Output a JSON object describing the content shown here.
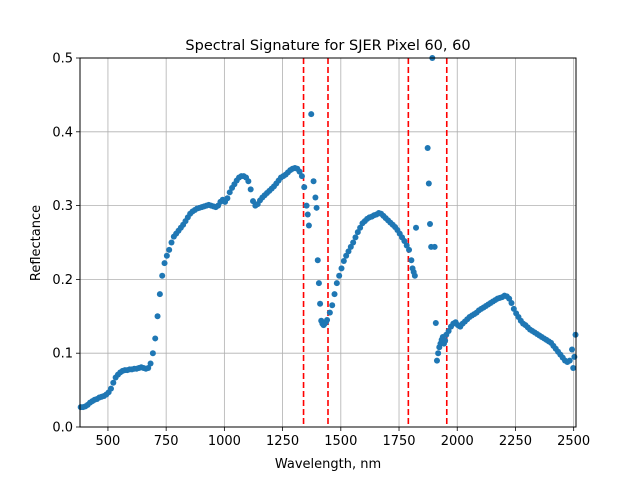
{
  "chart_data": {
    "type": "scatter",
    "title": "Spectral Signature for SJER Pixel 60, 60",
    "xlabel": "Wavelength, nm",
    "ylabel": "Reflectance",
    "xlim": [
      380,
      2510
    ],
    "ylim": [
      0,
      0.5
    ],
    "xticks": [
      500,
      750,
      1000,
      1250,
      1500,
      1750,
      2000,
      2250,
      2500
    ],
    "yticks": [
      0.0,
      0.1,
      0.2,
      0.3,
      0.4,
      0.5
    ],
    "xtick_labels": [
      "500",
      "750",
      "1000",
      "1250",
      "1500",
      "1750",
      "2000",
      "2250",
      "2500"
    ],
    "ytick_labels": [
      "0.0",
      "0.1",
      "0.2",
      "0.3",
      "0.4",
      "0.5"
    ],
    "grid": true,
    "point_color": "#1f77b4",
    "vline_color": "#ff0000",
    "vlines": [
      1340,
      1445,
      1790,
      1955
    ],
    "points": [
      [
        383,
        0.027
      ],
      [
        393,
        0.027
      ],
      [
        403,
        0.028
      ],
      [
        413,
        0.03
      ],
      [
        423,
        0.033
      ],
      [
        433,
        0.035
      ],
      [
        443,
        0.037
      ],
      [
        453,
        0.038
      ],
      [
        463,
        0.04
      ],
      [
        473,
        0.041
      ],
      [
        483,
        0.042
      ],
      [
        493,
        0.044
      ],
      [
        503,
        0.047
      ],
      [
        513,
        0.052
      ],
      [
        523,
        0.06
      ],
      [
        533,
        0.067
      ],
      [
        543,
        0.071
      ],
      [
        553,
        0.074
      ],
      [
        563,
        0.076
      ],
      [
        573,
        0.077
      ],
      [
        583,
        0.077
      ],
      [
        593,
        0.078
      ],
      [
        603,
        0.078
      ],
      [
        613,
        0.079
      ],
      [
        623,
        0.079
      ],
      [
        633,
        0.08
      ],
      [
        643,
        0.081
      ],
      [
        653,
        0.08
      ],
      [
        663,
        0.079
      ],
      [
        673,
        0.08
      ],
      [
        683,
        0.086
      ],
      [
        693,
        0.1
      ],
      [
        703,
        0.12
      ],
      [
        713,
        0.15
      ],
      [
        723,
        0.18
      ],
      [
        733,
        0.205
      ],
      [
        743,
        0.222
      ],
      [
        753,
        0.232
      ],
      [
        763,
        0.24
      ],
      [
        773,
        0.25
      ],
      [
        783,
        0.258
      ],
      [
        793,
        0.262
      ],
      [
        803,
        0.266
      ],
      [
        813,
        0.27
      ],
      [
        823,
        0.274
      ],
      [
        833,
        0.279
      ],
      [
        843,
        0.284
      ],
      [
        853,
        0.289
      ],
      [
        863,
        0.292
      ],
      [
        873,
        0.294
      ],
      [
        883,
        0.296
      ],
      [
        893,
        0.297
      ],
      [
        903,
        0.298
      ],
      [
        913,
        0.299
      ],
      [
        923,
        0.3
      ],
      [
        933,
        0.301
      ],
      [
        943,
        0.3
      ],
      [
        953,
        0.299
      ],
      [
        963,
        0.298
      ],
      [
        973,
        0.3
      ],
      [
        983,
        0.305
      ],
      [
        993,
        0.308
      ],
      [
        1003,
        0.305
      ],
      [
        1013,
        0.31
      ],
      [
        1023,
        0.318
      ],
      [
        1033,
        0.324
      ],
      [
        1043,
        0.329
      ],
      [
        1053,
        0.334
      ],
      [
        1063,
        0.338
      ],
      [
        1073,
        0.34
      ],
      [
        1083,
        0.34
      ],
      [
        1093,
        0.338
      ],
      [
        1103,
        0.333
      ],
      [
        1113,
        0.322
      ],
      [
        1123,
        0.306
      ],
      [
        1133,
        0.3
      ],
      [
        1143,
        0.302
      ],
      [
        1153,
        0.307
      ],
      [
        1163,
        0.311
      ],
      [
        1173,
        0.314
      ],
      [
        1183,
        0.317
      ],
      [
        1193,
        0.32
      ],
      [
        1203,
        0.323
      ],
      [
        1213,
        0.326
      ],
      [
        1223,
        0.33
      ],
      [
        1233,
        0.334
      ],
      [
        1243,
        0.338
      ],
      [
        1253,
        0.34
      ],
      [
        1263,
        0.342
      ],
      [
        1273,
        0.345
      ],
      [
        1283,
        0.348
      ],
      [
        1293,
        0.35
      ],
      [
        1303,
        0.351
      ],
      [
        1313,
        0.35
      ],
      [
        1323,
        0.346
      ],
      [
        1333,
        0.34
      ],
      [
        1343,
        0.325
      ],
      [
        1353,
        0.3
      ],
      [
        1358,
        0.288
      ],
      [
        1363,
        0.273
      ],
      [
        1373,
        0.424
      ],
      [
        1383,
        0.333
      ],
      [
        1391,
        0.311
      ],
      [
        1396,
        0.297
      ],
      [
        1401,
        0.226
      ],
      [
        1406,
        0.195
      ],
      [
        1411,
        0.167
      ],
      [
        1416,
        0.144
      ],
      [
        1421,
        0.14
      ],
      [
        1426,
        0.138
      ],
      [
        1431,
        0.14
      ],
      [
        1436,
        0.142
      ],
      [
        1441,
        0.145
      ],
      [
        1453,
        0.155
      ],
      [
        1463,
        0.165
      ],
      [
        1473,
        0.18
      ],
      [
        1483,
        0.195
      ],
      [
        1493,
        0.205
      ],
      [
        1503,
        0.215
      ],
      [
        1513,
        0.225
      ],
      [
        1523,
        0.232
      ],
      [
        1533,
        0.238
      ],
      [
        1543,
        0.244
      ],
      [
        1553,
        0.25
      ],
      [
        1563,
        0.257
      ],
      [
        1573,
        0.264
      ],
      [
        1583,
        0.27
      ],
      [
        1593,
        0.276
      ],
      [
        1603,
        0.279
      ],
      [
        1613,
        0.282
      ],
      [
        1623,
        0.284
      ],
      [
        1633,
        0.285
      ],
      [
        1643,
        0.287
      ],
      [
        1653,
        0.288
      ],
      [
        1663,
        0.29
      ],
      [
        1673,
        0.289
      ],
      [
        1683,
        0.286
      ],
      [
        1693,
        0.283
      ],
      [
        1703,
        0.28
      ],
      [
        1713,
        0.277
      ],
      [
        1723,
        0.274
      ],
      [
        1733,
        0.271
      ],
      [
        1743,
        0.267
      ],
      [
        1753,
        0.262
      ],
      [
        1763,
        0.257
      ],
      [
        1773,
        0.252
      ],
      [
        1783,
        0.246
      ],
      [
        1793,
        0.24
      ],
      [
        1803,
        0.226
      ],
      [
        1808,
        0.215
      ],
      [
        1813,
        0.21
      ],
      [
        1818,
        0.205
      ],
      [
        1823,
        0.27
      ],
      [
        1873,
        0.378
      ],
      [
        1878,
        0.33
      ],
      [
        1883,
        0.275
      ],
      [
        1888,
        0.244
      ],
      [
        1893,
        0.5
      ],
      [
        1903,
        0.244
      ],
      [
        1908,
        0.141
      ],
      [
        1913,
        0.09
      ],
      [
        1918,
        0.1
      ],
      [
        1923,
        0.108
      ],
      [
        1928,
        0.113
      ],
      [
        1933,
        0.118
      ],
      [
        1938,
        0.122
      ],
      [
        1943,
        0.113
      ],
      [
        1948,
        0.117
      ],
      [
        1953,
        0.125
      ],
      [
        1963,
        0.13
      ],
      [
        1973,
        0.136
      ],
      [
        1983,
        0.14
      ],
      [
        1993,
        0.142
      ],
      [
        2003,
        0.138
      ],
      [
        2013,
        0.136
      ],
      [
        2023,
        0.14
      ],
      [
        2033,
        0.143
      ],
      [
        2043,
        0.146
      ],
      [
        2053,
        0.149
      ],
      [
        2063,
        0.151
      ],
      [
        2073,
        0.153
      ],
      [
        2083,
        0.155
      ],
      [
        2093,
        0.158
      ],
      [
        2103,
        0.16
      ],
      [
        2113,
        0.162
      ],
      [
        2123,
        0.164
      ],
      [
        2133,
        0.166
      ],
      [
        2143,
        0.168
      ],
      [
        2153,
        0.17
      ],
      [
        2163,
        0.172
      ],
      [
        2173,
        0.174
      ],
      [
        2183,
        0.175
      ],
      [
        2193,
        0.176
      ],
      [
        2203,
        0.178
      ],
      [
        2213,
        0.177
      ],
      [
        2223,
        0.174
      ],
      [
        2233,
        0.168
      ],
      [
        2243,
        0.16
      ],
      [
        2253,
        0.154
      ],
      [
        2263,
        0.149
      ],
      [
        2273,
        0.144
      ],
      [
        2283,
        0.14
      ],
      [
        2293,
        0.138
      ],
      [
        2303,
        0.135
      ],
      [
        2313,
        0.132
      ],
      [
        2323,
        0.13
      ],
      [
        2333,
        0.128
      ],
      [
        2343,
        0.126
      ],
      [
        2353,
        0.124
      ],
      [
        2363,
        0.122
      ],
      [
        2373,
        0.12
      ],
      [
        2383,
        0.118
      ],
      [
        2393,
        0.116
      ],
      [
        2403,
        0.114
      ],
      [
        2413,
        0.11
      ],
      [
        2423,
        0.106
      ],
      [
        2433,
        0.102
      ],
      [
        2443,
        0.098
      ],
      [
        2453,
        0.094
      ],
      [
        2463,
        0.09
      ],
      [
        2473,
        0.088
      ],
      [
        2483,
        0.09
      ],
      [
        2493,
        0.105
      ],
      [
        2498,
        0.08
      ],
      [
        2503,
        0.095
      ],
      [
        2508,
        0.125
      ]
    ]
  }
}
